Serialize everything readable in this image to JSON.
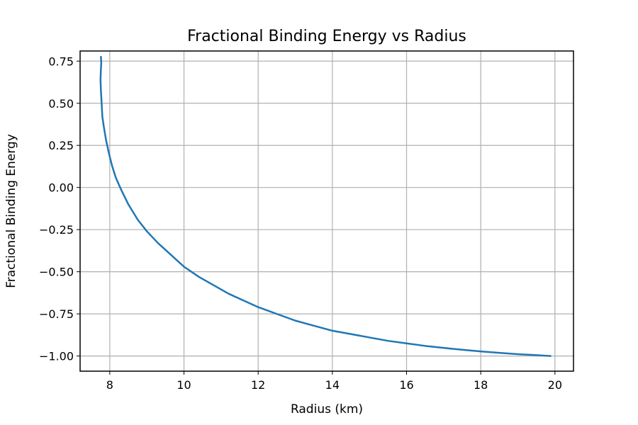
{
  "chart_data": {
    "type": "line",
    "title": "Fractional Binding Energy vs Radius",
    "xlabel": "Radius (km)",
    "ylabel": "Fractional Binding Energy",
    "xlim": [
      7.2,
      20.5
    ],
    "ylim": [
      -1.09,
      0.81
    ],
    "x_ticks": [
      8,
      10,
      12,
      14,
      16,
      18,
      20
    ],
    "x_tick_labels": [
      "8",
      "10",
      "12",
      "14",
      "16",
      "18",
      "20"
    ],
    "y_ticks": [
      -1.0,
      -0.75,
      -0.5,
      -0.25,
      0.0,
      0.25,
      0.5,
      0.75
    ],
    "y_tick_labels": [
      "−1.00",
      "−0.75",
      "−0.50",
      "−0.25",
      "0.00",
      "0.25",
      "0.50",
      "0.75"
    ],
    "grid": true,
    "series": [
      {
        "color": "#1f77b4",
        "x": [
          7.76,
          7.77,
          7.76,
          7.75,
          7.76,
          7.78,
          7.8,
          7.84,
          7.9,
          7.98,
          8.06,
          8.16,
          8.3,
          8.5,
          8.75,
          9.0,
          9.3,
          9.6,
          10.0,
          10.4,
          10.8,
          11.2,
          11.6,
          12.0,
          12.5,
          13.0,
          13.5,
          14.0,
          14.5,
          15.0,
          15.5,
          16.0,
          16.5,
          17.0,
          17.5,
          18.0,
          18.5,
          19.0,
          19.5,
          19.9
        ],
        "y": [
          0.78,
          0.74,
          0.7,
          0.64,
          0.58,
          0.5,
          0.42,
          0.36,
          0.28,
          0.2,
          0.13,
          0.06,
          -0.01,
          -0.1,
          -0.19,
          -0.26,
          -0.33,
          -0.39,
          -0.47,
          -0.53,
          -0.58,
          -0.63,
          -0.67,
          -0.71,
          -0.75,
          -0.79,
          -0.82,
          -0.85,
          -0.87,
          -0.89,
          -0.91,
          -0.925,
          -0.94,
          -0.952,
          -0.963,
          -0.973,
          -0.981,
          -0.989,
          -0.995,
          -1.0
        ]
      }
    ]
  }
}
